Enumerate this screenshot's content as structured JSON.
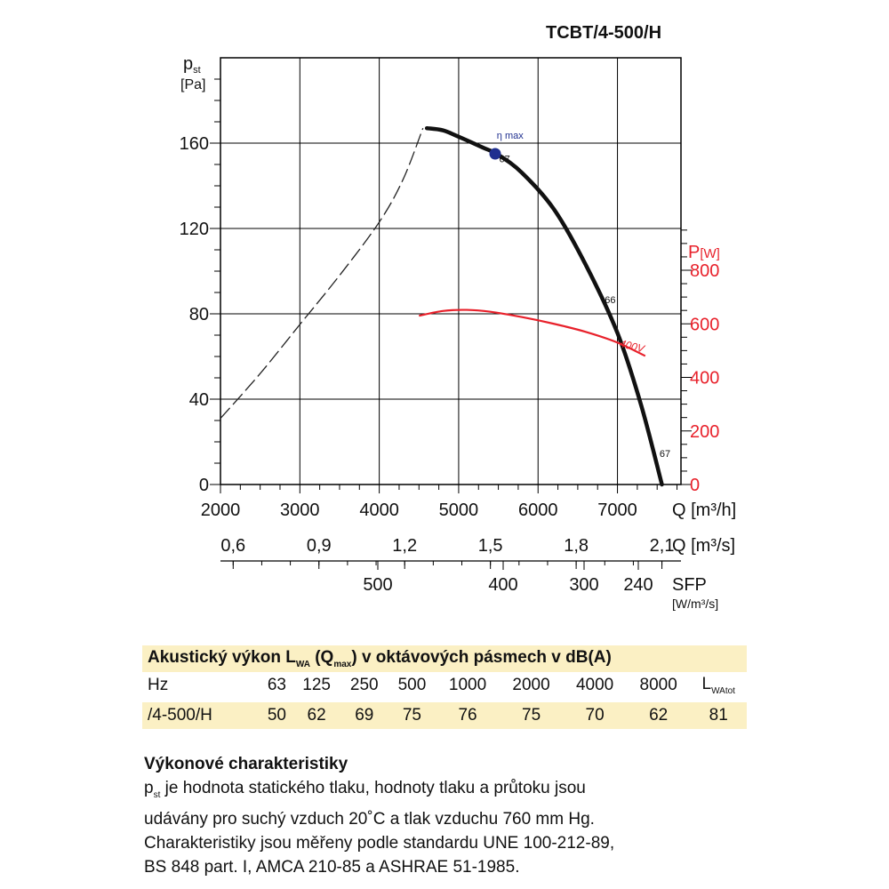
{
  "model": "TCBT/4-500/H",
  "chart_data": {
    "type": "line",
    "title": "TCBT/4-500/H",
    "x_axis": {
      "label": "Q [m³/h]",
      "range": [
        2000,
        7800
      ],
      "ticks": [
        "2000",
        "3000",
        "4000",
        "5000",
        "6000",
        "7000"
      ]
    },
    "x_axis_secondary": {
      "label": "Q [m³/s]",
      "ticks": [
        "0,6",
        "0,9",
        "1,2",
        "1,5",
        "1,8",
        "2,1"
      ]
    },
    "x_axis_sfp": {
      "label": "SFP",
      "unit": "[W/m³/s]",
      "ticks": [
        "500",
        "400",
        "300",
        "240"
      ]
    },
    "y_axis": {
      "label": "p",
      "label_sub": "st",
      "unit": "[Pa]",
      "range": [
        0,
        160
      ],
      "ticks": [
        "0",
        "40",
        "80",
        "120",
        "160"
      ]
    },
    "y_axis_right": {
      "label": "P",
      "unit": "[W]",
      "color": "#e8212b",
      "range": [
        0,
        800
      ],
      "ticks": [
        "0",
        "200",
        "400",
        "600",
        "800"
      ]
    },
    "grid": true,
    "series": [
      {
        "name": "",
        "style": "dashed",
        "color": "#222222",
        "x": [
          2000,
          2500,
          3000,
          3500,
          4000,
          4300,
          4550
        ],
        "y": [
          31,
          52,
          75,
          98,
          123,
          143,
          167
        ]
      },
      {
        "name": "",
        "style": "solid",
        "color": "#111111",
        "x": [
          4600,
          4800,
          5000,
          5300,
          5500,
          5800,
          6200,
          6600,
          7000,
          7300,
          7560
        ],
        "y": [
          167,
          166,
          163,
          158,
          154.5,
          146,
          129,
          103,
          71,
          37,
          0
        ]
      },
      {
        "name": "400V",
        "style": "solid",
        "color": "#e8212b",
        "axis": "right",
        "x": [
          4500,
          4800,
          5100,
          5400,
          5800,
          6200,
          6600,
          7000,
          7350
        ],
        "y": [
          630,
          648,
          652,
          645,
          625,
          600,
          570,
          530,
          480
        ]
      }
    ],
    "annotations": [
      {
        "text": "η max",
        "x": 5480,
        "y": 162,
        "color": "#1f2f8f"
      },
      {
        "text": "67",
        "x": 5510,
        "y": 151
      },
      {
        "text": "66",
        "x": 6840,
        "y": 85
      },
      {
        "text": "67",
        "x": 7530,
        "y": 13
      },
      {
        "text": "400V",
        "x": 7020,
        "y_right": 515,
        "color": "#e8212b"
      }
    ],
    "eta_max_point": {
      "x": 5460,
      "y": 155,
      "color": "#1f2f8f"
    },
    "legend": "none"
  },
  "sound_table": {
    "header": "Akustický výkon L",
    "header_sub1": "WA",
    "header_mid": " (Q",
    "header_sub2": "max",
    "header_end": ") v oktávových pásmech v dB(A)",
    "hz_label": "Hz",
    "bands": [
      "63",
      "125",
      "250",
      "500",
      "1000",
      "2000",
      "4000",
      "8000"
    ],
    "total_label": "L",
    "total_sub": "WAtot",
    "row_label": "/4-500/H",
    "values": [
      "50",
      "62",
      "69",
      "75",
      "76",
      "75",
      "70",
      "62",
      "81"
    ]
  },
  "notes": {
    "title": "Výkonové charakteristiky",
    "line1_sym": "p",
    "line1_sub": "st",
    "line1": " je hodnota statického tlaku, hodnoty tlaku a průtoku jsou",
    "line2": "udávány pro suchý vzduch 20˚C a tlak vzduchu 760 mm Hg.",
    "line3": "Charakteristiky jsou měřeny podle standardu UNE 100-212-89,",
    "line4": "BS 848 part. I, AMCA 210-85 a ASHRAE 51-1985."
  }
}
